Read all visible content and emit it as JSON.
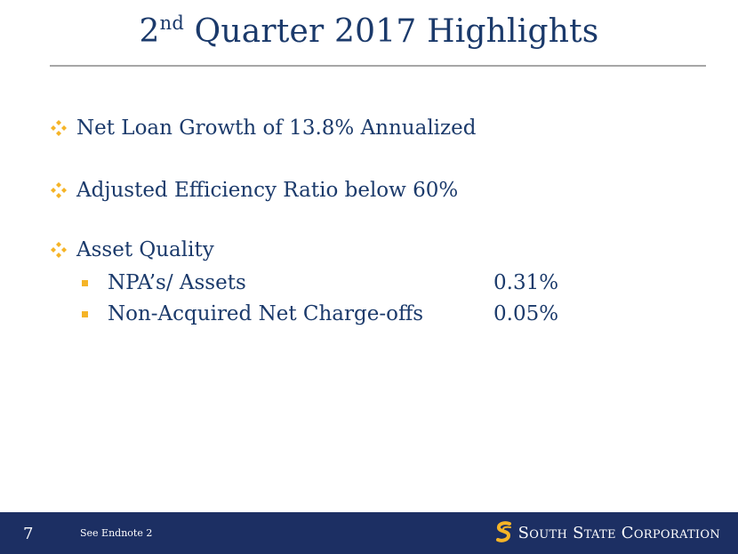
{
  "title": {
    "prefix": "2",
    "sup": "nd",
    "rest": " Quarter 2017 Highlights"
  },
  "bullets": [
    {
      "text": "Net Loan Growth of 13.8% Annualized"
    },
    {
      "text": "Adjusted Efficiency Ratio below 60%"
    },
    {
      "text": "Asset Quality"
    }
  ],
  "asset_quality_items": [
    {
      "label": "NPA’s/ Assets",
      "value": "0.31%"
    },
    {
      "label": "Non-Acquired Net Charge-offs",
      "value": "0.05%"
    }
  ],
  "footer": {
    "page_number": "7",
    "endnote": "See Endnote 2",
    "logo_text": "South State Corporation"
  },
  "colors": {
    "navy": "#1c2f63",
    "title_blue": "#1b3a6b",
    "accent_gold": "#f5b427",
    "rule_gray": "#a6a6a6"
  },
  "icons": {
    "bullet": "four-diamond-icon",
    "sub_bullet": "square-bullet-icon",
    "logo": "south-state-s-logo-icon"
  }
}
